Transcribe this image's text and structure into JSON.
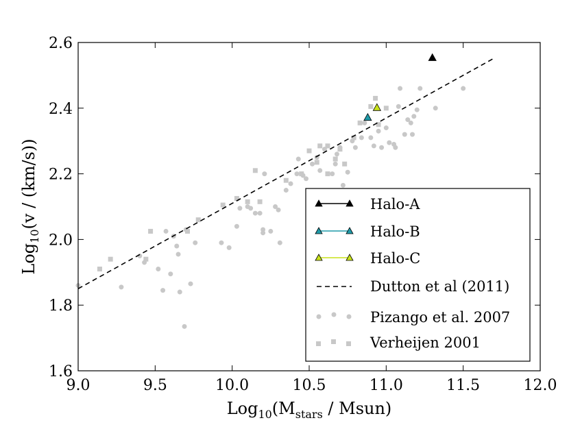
{
  "chart_data": {
    "type": "scatter",
    "title": "",
    "xlabel_main": "Log",
    "xlabel_sub": "10",
    "xlabel_paren_open": "(M",
    "xlabel_stars": "stars",
    "xlabel_rest": " / Msun)",
    "ylabel_main": "Log",
    "ylabel_sub": "10",
    "ylabel_rest": "(v / (km/s))",
    "xlim": [
      9.0,
      12.0
    ],
    "ylim": [
      1.6,
      2.6
    ],
    "xticks": [
      9.0,
      9.5,
      10.0,
      10.5,
      11.0,
      11.5,
      12.0
    ],
    "xtick_labels": [
      "9.0",
      "9.5",
      "10.0",
      "10.5",
      "11.0",
      "11.5",
      "12.0"
    ],
    "yticks": [
      1.6,
      1.8,
      2.0,
      2.2,
      2.4,
      2.6
    ],
    "ytick_labels": [
      "1.6",
      "1.8",
      "2.0",
      "2.2",
      "2.4",
      "2.6"
    ],
    "grid": false,
    "legend_position": "lower-right",
    "series": [
      {
        "name": "Halo-A",
        "marker": "triangle",
        "color": "#000000",
        "line_color": "#000000",
        "points": [
          [
            11.3,
            2.553
          ]
        ]
      },
      {
        "name": "Halo-B",
        "marker": "triangle",
        "color": "#1f9aa8",
        "line_color": "#1f9aa8",
        "points": [
          [
            10.88,
            2.371
          ]
        ]
      },
      {
        "name": "Halo-C",
        "marker": "triangle",
        "color": "#c8e21a",
        "line_color": "#c8e21a",
        "points": [
          [
            10.94,
            2.401
          ]
        ]
      },
      {
        "name": "Dutton et al (2011)",
        "type": "dashed-line",
        "color": "#000000",
        "points": [
          [
            9.0,
            1.85
          ],
          [
            11.7,
            2.552
          ]
        ]
      },
      {
        "name": "Pizango et al. 2007",
        "marker": "circle",
        "color": "#c8c8c8",
        "points": [
          [
            9.0,
            1.86
          ],
          [
            9.28,
            1.855
          ],
          [
            9.4,
            1.95
          ],
          [
            9.43,
            1.93
          ],
          [
            9.52,
            1.91
          ],
          [
            9.55,
            1.845
          ],
          [
            9.57,
            2.025
          ],
          [
            9.6,
            1.895
          ],
          [
            9.62,
            2.01
          ],
          [
            9.64,
            1.98
          ],
          [
            9.65,
            1.955
          ],
          [
            9.66,
            1.84
          ],
          [
            9.69,
            1.735
          ],
          [
            9.7,
            2.03
          ],
          [
            9.73,
            1.865
          ],
          [
            9.76,
            1.99
          ],
          [
            9.93,
            1.99
          ],
          [
            9.98,
            1.975
          ],
          [
            10.03,
            2.04
          ],
          [
            10.05,
            2.095
          ],
          [
            10.1,
            2.1
          ],
          [
            10.12,
            2.095
          ],
          [
            10.15,
            2.08
          ],
          [
            10.18,
            2.08
          ],
          [
            10.2,
            2.02
          ],
          [
            10.2,
            2.03
          ],
          [
            10.21,
            2.2
          ],
          [
            10.25,
            2.025
          ],
          [
            10.28,
            2.1
          ],
          [
            10.3,
            2.09
          ],
          [
            10.31,
            1.99
          ],
          [
            10.35,
            2.15
          ],
          [
            10.38,
            2.17
          ],
          [
            10.42,
            2.2
          ],
          [
            10.43,
            2.245
          ],
          [
            10.46,
            2.195
          ],
          [
            10.48,
            2.185
          ],
          [
            10.52,
            2.23
          ],
          [
            10.55,
            2.25
          ],
          [
            10.57,
            2.21
          ],
          [
            10.6,
            2.275
          ],
          [
            10.62,
            2.285
          ],
          [
            10.65,
            2.2
          ],
          [
            10.67,
            2.23
          ],
          [
            10.68,
            2.26
          ],
          [
            10.7,
            2.28
          ],
          [
            10.72,
            2.165
          ],
          [
            10.75,
            2.205
          ],
          [
            10.78,
            2.3
          ],
          [
            10.8,
            2.28
          ],
          [
            10.84,
            2.31
          ],
          [
            10.86,
            2.355
          ],
          [
            10.9,
            2.31
          ],
          [
            10.92,
            2.285
          ],
          [
            10.95,
            2.33
          ],
          [
            10.97,
            2.28
          ],
          [
            11.0,
            2.34
          ],
          [
            11.02,
            2.295
          ],
          [
            11.05,
            2.29
          ],
          [
            11.06,
            2.28
          ],
          [
            11.08,
            2.405
          ],
          [
            11.09,
            2.46
          ],
          [
            11.12,
            2.32
          ],
          [
            11.14,
            2.365
          ],
          [
            11.16,
            2.355
          ],
          [
            11.17,
            2.32
          ],
          [
            11.18,
            2.375
          ],
          [
            11.2,
            2.395
          ],
          [
            11.22,
            2.46
          ],
          [
            11.32,
            2.4
          ],
          [
            11.5,
            2.46
          ]
        ]
      },
      {
        "name": "Verheijen 2001",
        "marker": "square",
        "color": "#c8c8c8",
        "points": [
          [
            9.14,
            1.91
          ],
          [
            9.21,
            1.94
          ],
          [
            9.44,
            1.94
          ],
          [
            9.47,
            2.025
          ],
          [
            9.71,
            2.025
          ],
          [
            9.78,
            2.06
          ],
          [
            9.94,
            2.105
          ],
          [
            10.03,
            2.125
          ],
          [
            10.1,
            2.115
          ],
          [
            10.15,
            2.21
          ],
          [
            10.18,
            2.115
          ],
          [
            10.35,
            2.18
          ],
          [
            10.45,
            2.2
          ],
          [
            10.5,
            2.27
          ],
          [
            10.55,
            2.235
          ],
          [
            10.57,
            2.285
          ],
          [
            10.62,
            2.2
          ],
          [
            10.62,
            2.285
          ],
          [
            10.67,
            2.245
          ],
          [
            10.7,
            2.275
          ],
          [
            10.73,
            2.23
          ],
          [
            10.79,
            2.31
          ],
          [
            10.83,
            2.355
          ],
          [
            10.9,
            2.405
          ],
          [
            10.93,
            2.43
          ],
          [
            10.95,
            2.35
          ],
          [
            11.0,
            2.4
          ]
        ]
      }
    ]
  }
}
